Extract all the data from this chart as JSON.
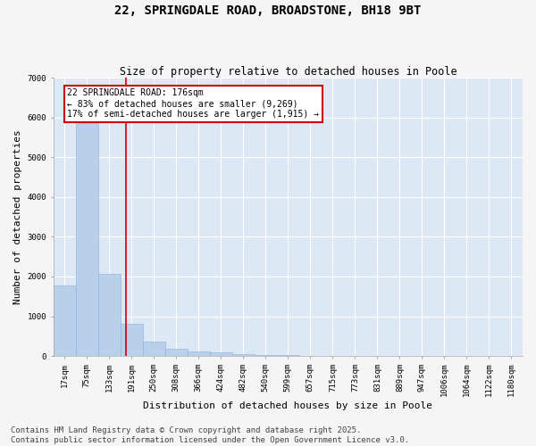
{
  "title": "22, SPRINGDALE ROAD, BROADSTONE, BH18 9BT",
  "subtitle": "Size of property relative to detached houses in Poole",
  "xlabel": "Distribution of detached houses by size in Poole",
  "ylabel": "Number of detached properties",
  "background_color": "#dde8f5",
  "bar_color": "#b8d0ea",
  "bar_edgecolor": "#8aafe0",
  "grid_color": "#ffffff",
  "bin_labels": [
    "17sqm",
    "75sqm",
    "133sqm",
    "191sqm",
    "250sqm",
    "308sqm",
    "366sqm",
    "424sqm",
    "482sqm",
    "540sqm",
    "599sqm",
    "657sqm",
    "715sqm",
    "773sqm",
    "831sqm",
    "889sqm",
    "947sqm",
    "1006sqm",
    "1064sqm",
    "1122sqm",
    "1180sqm"
  ],
  "bar_values": [
    1780,
    5850,
    2070,
    820,
    360,
    175,
    110,
    90,
    60,
    35,
    20,
    10,
    5,
    3,
    2,
    1,
    1,
    1,
    0,
    0,
    0
  ],
  "ylim": [
    0,
    7000
  ],
  "yticks": [
    0,
    1000,
    2000,
    3000,
    4000,
    5000,
    6000,
    7000
  ],
  "property_line_x": 2.76,
  "property_line_color": "#cc0000",
  "annotation_line1": "22 SPRINGDALE ROAD: 176sqm",
  "annotation_line2": "← 83% of detached houses are smaller (9,269)",
  "annotation_line3": "17% of semi-detached houses are larger (1,915) →",
  "annotation_box_color": "#cc0000",
  "footnote": "Contains HM Land Registry data © Crown copyright and database right 2025.\nContains public sector information licensed under the Open Government Licence v3.0.",
  "title_fontsize": 10,
  "subtitle_fontsize": 8.5,
  "label_fontsize": 8,
  "tick_fontsize": 6.5,
  "annotation_fontsize": 7,
  "footnote_fontsize": 6.5,
  "fig_facecolor": "#f5f5f5"
}
